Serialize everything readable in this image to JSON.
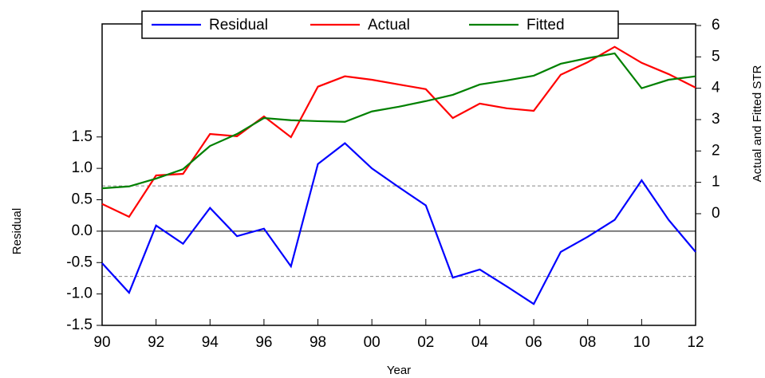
{
  "chart_data": {
    "type": "line",
    "x": [
      1990,
      1991,
      1992,
      1993,
      1994,
      1995,
      1996,
      1997,
      1998,
      1999,
      2000,
      2001,
      2002,
      2003,
      2004,
      2005,
      2006,
      2007,
      2008,
      2009,
      2010,
      2011,
      2012
    ],
    "series": [
      {
        "name": "Residual",
        "color": "#0000ff",
        "axis": "y",
        "values": [
          -0.51,
          -0.98,
          0.09,
          -0.2,
          0.37,
          -0.08,
          0.04,
          -0.56,
          1.07,
          1.4,
          1.0,
          0.7,
          0.41,
          -0.74,
          -0.61,
          -0.88,
          -1.16,
          -0.33,
          -0.09,
          0.18,
          0.81,
          0.18,
          -0.33
        ]
      },
      {
        "name": "Actual",
        "color": "#ff0000",
        "axis": "y2",
        "values": [
          0.31,
          -0.1,
          1.22,
          1.27,
          2.54,
          2.47,
          3.1,
          2.44,
          4.05,
          4.38,
          4.27,
          4.12,
          3.97,
          3.05,
          3.51,
          3.36,
          3.28,
          4.43,
          4.83,
          5.32,
          4.81,
          4.45,
          4.02
        ]
      },
      {
        "name": "Fitted",
        "color": "#008000",
        "axis": "y2",
        "values": [
          0.81,
          0.87,
          1.12,
          1.42,
          2.16,
          2.54,
          3.05,
          2.98,
          2.95,
          2.93,
          3.26,
          3.41,
          3.59,
          3.79,
          4.12,
          4.25,
          4.4,
          4.78,
          4.96,
          5.11,
          4.0,
          4.27,
          4.38
        ]
      }
    ],
    "xlabel": "Year",
    "ylabel": "Residual",
    "y2label": "Actual  and  Fitted STR",
    "xlim": [
      1990,
      2012
    ],
    "xticks": [
      {
        "value": 1990,
        "label": "90"
      },
      {
        "value": 1992,
        "label": "92"
      },
      {
        "value": 1994,
        "label": "94"
      },
      {
        "value": 1996,
        "label": "96"
      },
      {
        "value": 1998,
        "label": "98"
      },
      {
        "value": 2000,
        "label": "00"
      },
      {
        "value": 2002,
        "label": "02"
      },
      {
        "value": 2004,
        "label": "04"
      },
      {
        "value": 2006,
        "label": "06"
      },
      {
        "value": 2008,
        "label": "08"
      },
      {
        "value": 2010,
        "label": "10"
      },
      {
        "value": 2012,
        "label": "12"
      }
    ],
    "ylim": [
      -1.5,
      3.3
    ],
    "yticks": [
      {
        "value": -1.5,
        "label": "-1.5"
      },
      {
        "value": -1.0,
        "label": "-1.0"
      },
      {
        "value": -0.5,
        "label": "-0.5"
      },
      {
        "value": 0,
        "label": "0.0"
      },
      {
        "value": 0.5,
        "label": "0.5"
      },
      {
        "value": 1.0,
        "label": "1.0"
      },
      {
        "value": 1.5,
        "label": "1.5"
      }
    ],
    "y2lim": [
      -3.56,
      6.05
    ],
    "y2ticks": [
      0,
      1,
      2,
      3,
      4,
      5,
      6
    ],
    "ref_lines": [
      {
        "value": 0,
        "style": "solid"
      },
      {
        "value": 0.72,
        "style": "dashed"
      },
      {
        "value": -0.72,
        "style": "dashed"
      }
    ],
    "legend": "top"
  }
}
